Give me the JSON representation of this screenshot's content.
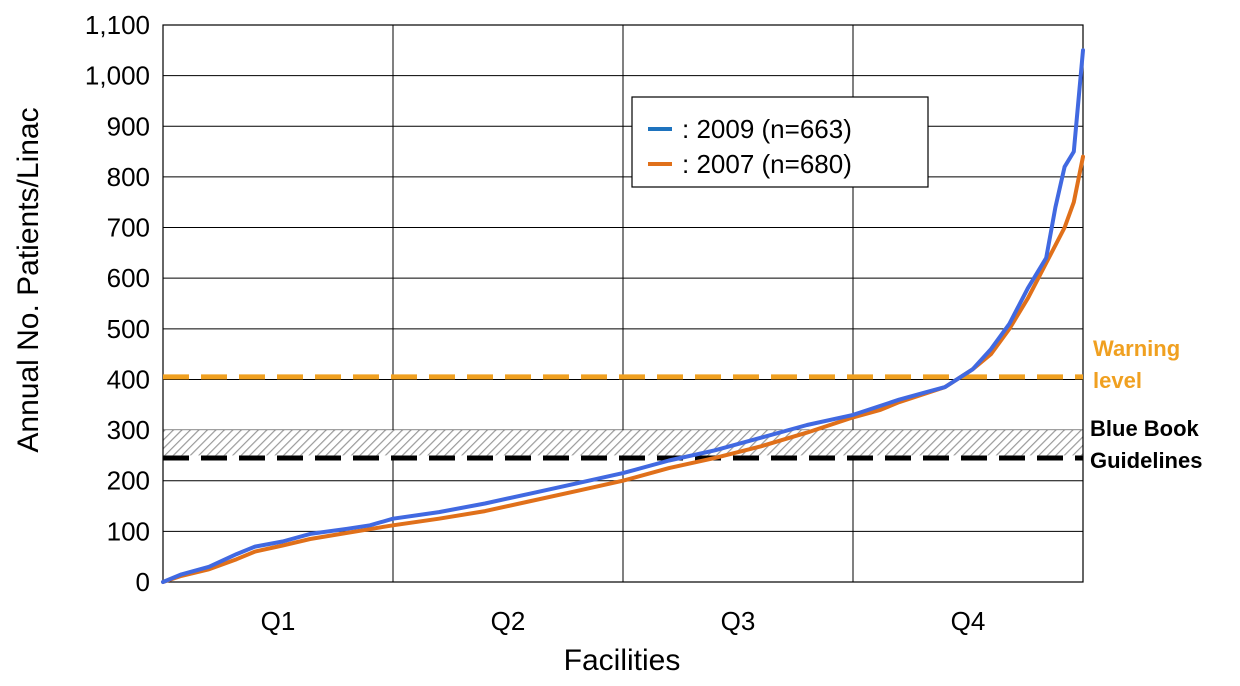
{
  "chart_data": {
    "type": "line",
    "title": "",
    "xlabel": "Facilities",
    "ylabel": "Annual No. Patients/Linac",
    "ylim": [
      0,
      1100
    ],
    "yticks": [
      0,
      100,
      200,
      300,
      400,
      500,
      600,
      700,
      800,
      900,
      1000,
      1100
    ],
    "ytick_labels": [
      "0",
      "100",
      "200",
      "300",
      "400",
      "500",
      "600",
      "700",
      "800",
      "900",
      "1,000",
      "1,100"
    ],
    "categories": [
      "Q1",
      "Q2",
      "Q3",
      "Q4"
    ],
    "grid": true,
    "legend_position": "top-center",
    "series": [
      {
        "name": "2009 (n=663)",
        "color": "#4169e1",
        "legend_color": "#1e73be",
        "points": [
          [
            0,
            0
          ],
          [
            0.02,
            15
          ],
          [
            0.05,
            30
          ],
          [
            0.08,
            55
          ],
          [
            0.1,
            70
          ],
          [
            0.13,
            80
          ],
          [
            0.16,
            95
          ],
          [
            0.2,
            105
          ],
          [
            0.225,
            112
          ],
          [
            0.25,
            125
          ],
          [
            0.3,
            138
          ],
          [
            0.35,
            155
          ],
          [
            0.4,
            175
          ],
          [
            0.45,
            195
          ],
          [
            0.5,
            215
          ],
          [
            0.55,
            240
          ],
          [
            0.6,
            260
          ],
          [
            0.65,
            285
          ],
          [
            0.7,
            310
          ],
          [
            0.75,
            330
          ],
          [
            0.8,
            360
          ],
          [
            0.83,
            375
          ],
          [
            0.85,
            385
          ],
          [
            0.88,
            420
          ],
          [
            0.9,
            460
          ],
          [
            0.92,
            510
          ],
          [
            0.94,
            580
          ],
          [
            0.96,
            640
          ],
          [
            0.97,
            740
          ],
          [
            0.98,
            820
          ],
          [
            0.99,
            850
          ],
          [
            1.0,
            1050
          ]
        ]
      },
      {
        "name": "2007 (n=680)",
        "color": "#e0701a",
        "legend_color": "#e0701a",
        "points": [
          [
            0,
            0
          ],
          [
            0.02,
            12
          ],
          [
            0.05,
            25
          ],
          [
            0.08,
            45
          ],
          [
            0.1,
            60
          ],
          [
            0.13,
            72
          ],
          [
            0.16,
            85
          ],
          [
            0.2,
            97
          ],
          [
            0.25,
            112
          ],
          [
            0.3,
            125
          ],
          [
            0.35,
            140
          ],
          [
            0.4,
            160
          ],
          [
            0.45,
            180
          ],
          [
            0.5,
            200
          ],
          [
            0.55,
            225
          ],
          [
            0.6,
            245
          ],
          [
            0.65,
            268
          ],
          [
            0.7,
            295
          ],
          [
            0.75,
            325
          ],
          [
            0.78,
            340
          ],
          [
            0.8,
            355
          ],
          [
            0.85,
            385
          ],
          [
            0.88,
            420
          ],
          [
            0.9,
            450
          ],
          [
            0.92,
            500
          ],
          [
            0.94,
            560
          ],
          [
            0.96,
            630
          ],
          [
            0.98,
            700
          ],
          [
            0.99,
            750
          ],
          [
            1.0,
            840
          ]
        ]
      }
    ],
    "reference_lines": [
      {
        "label_lines": [
          "Warning",
          "level"
        ],
        "value": 405,
        "color": "#f0a020"
      },
      {
        "label_lines": [
          "Blue Book",
          "Guidelines"
        ],
        "value": 245,
        "color": "#000000"
      }
    ],
    "shaded_band": {
      "from": 250,
      "to": 300
    },
    "legend_separator": ":"
  }
}
